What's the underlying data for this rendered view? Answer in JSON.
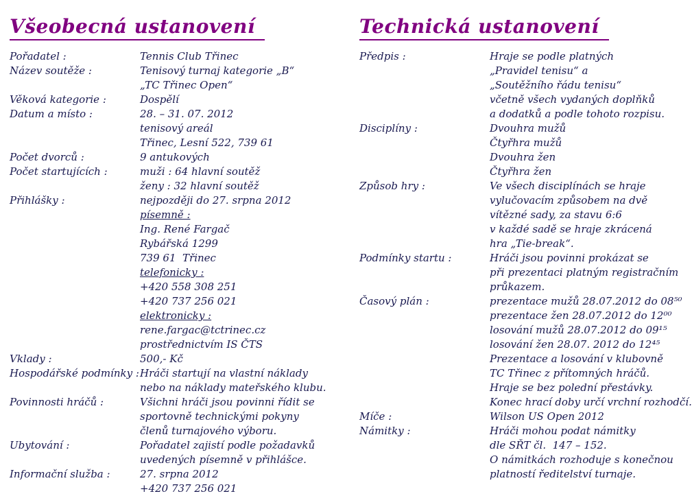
{
  "colors": {
    "heading": "#800080",
    "text": "#191950",
    "background": "#ffffff"
  },
  "left_column": {
    "title": "Všeobecná ustanovení",
    "rows": [
      {
        "label": "Pořadatel :",
        "lines": [
          "Tennis Club Třinec"
        ]
      },
      {
        "label": "Název soutěže :",
        "lines": [
          "Tenisový turnaj kategorie „B“",
          "„TC Třinec Open“"
        ]
      },
      {
        "label": "Věková kategorie :",
        "lines": [
          "Dospělí"
        ]
      },
      {
        "label": "Datum a místo :",
        "lines": [
          "28. – 31. 07. 2012",
          "tenisový areál",
          "Třinec, Lesní 522, 739 61"
        ]
      },
      {
        "label": "Počet dvorců :",
        "lines": [
          "9 antukových"
        ]
      },
      {
        "label": "Počet startujících :",
        "lines": [
          "muži : 64 hlavní soutěž",
          "ženy : 32 hlavní soutěž"
        ]
      },
      {
        "label": "Přihlášky :",
        "lines": [
          "nejpozději do 27. srpna 2012",
          "písemně :",
          "Ing. René Fargač",
          "Rybářská 1299",
          "739 61  Třinec",
          "telefonicky :",
          "+420 558 308 251",
          "+420 737 256 021",
          "elektronicky :",
          "rene.fargac@tctrinec.cz",
          "prostřednictvím IS ČTS"
        ]
      },
      {
        "label": "Vklady :",
        "lines": [
          "500,- Kč"
        ]
      },
      {
        "label": "Hospodářské podmínky :",
        "lines": [
          "Hráči startují na vlastní náklady",
          "nebo na náklady mateřského klubu."
        ]
      },
      {
        "label": "Povinnosti hráčů :",
        "lines": [
          "Všichni hráči jsou povinni řídit se",
          "sportovně technickými pokyny",
          "členů turnajového výboru."
        ]
      },
      {
        "label": "Ubytování :",
        "lines": [
          "Pořadatel zajistí podle požadavků",
          "uvedených písemně v přihlášce."
        ]
      },
      {
        "label": "Informační služba :",
        "lines": [
          "27. srpna 2012",
          "+420 737 256 021"
        ]
      }
    ]
  },
  "right_column": {
    "title": "Technická ustanovení",
    "rows": [
      {
        "label": "Předpis :",
        "lines": [
          "Hraje se podle platných",
          "„Pravidel tenisu“ a",
          "„Soutěžního řádu tenisu“",
          "včetně všech vydaných doplňků",
          "a dodatků a podle tohoto rozpisu."
        ]
      },
      {
        "label": "Disciplíny :",
        "lines": [
          "Dvouhra mužů",
          "Čtyřhra mužů",
          "Dvouhra žen",
          "Čtyřhra žen"
        ]
      },
      {
        "label": "Způsob hry :",
        "lines": [
          "Ve všech disciplínách se hraje",
          "vylučovacím způsobem na dvě",
          "vítězné sady, za stavu 6:6",
          "v každé sadě se hraje zkrácená",
          "hra „Tie-break“."
        ]
      },
      {
        "label": "Podmínky startu :",
        "lines": [
          "Hráči jsou povinni prokázat se",
          "při prezentaci platným registračním",
          "průkazem."
        ]
      },
      {
        "label": "Časový plán :",
        "lines": [
          "prezentace mužů 28.07.2012 do 08⁵⁰",
          "prezentace žen 28.07.2012 do 12⁰⁰",
          "losování mužů 28.07.2012 do 09¹⁵",
          "losování žen 28.07. 2012 do 12⁴⁵",
          "Prezentace a losování v klubovně",
          "TC Třinec z přítomných hráčů.",
          "Hraje se bez polední přestávky.",
          "Konec hrací doby určí vrchní rozhodčí."
        ]
      },
      {
        "label": "Míče :",
        "lines": [
          "Wilson US Open 2012"
        ]
      },
      {
        "label": "Námitky :",
        "lines": [
          "Hráči mohou podat námitky",
          "dle SŘT čl.  147 – 152.",
          "O námitkách rozhoduje s konečnou",
          "platností ředitelství turnaje."
        ]
      }
    ]
  }
}
